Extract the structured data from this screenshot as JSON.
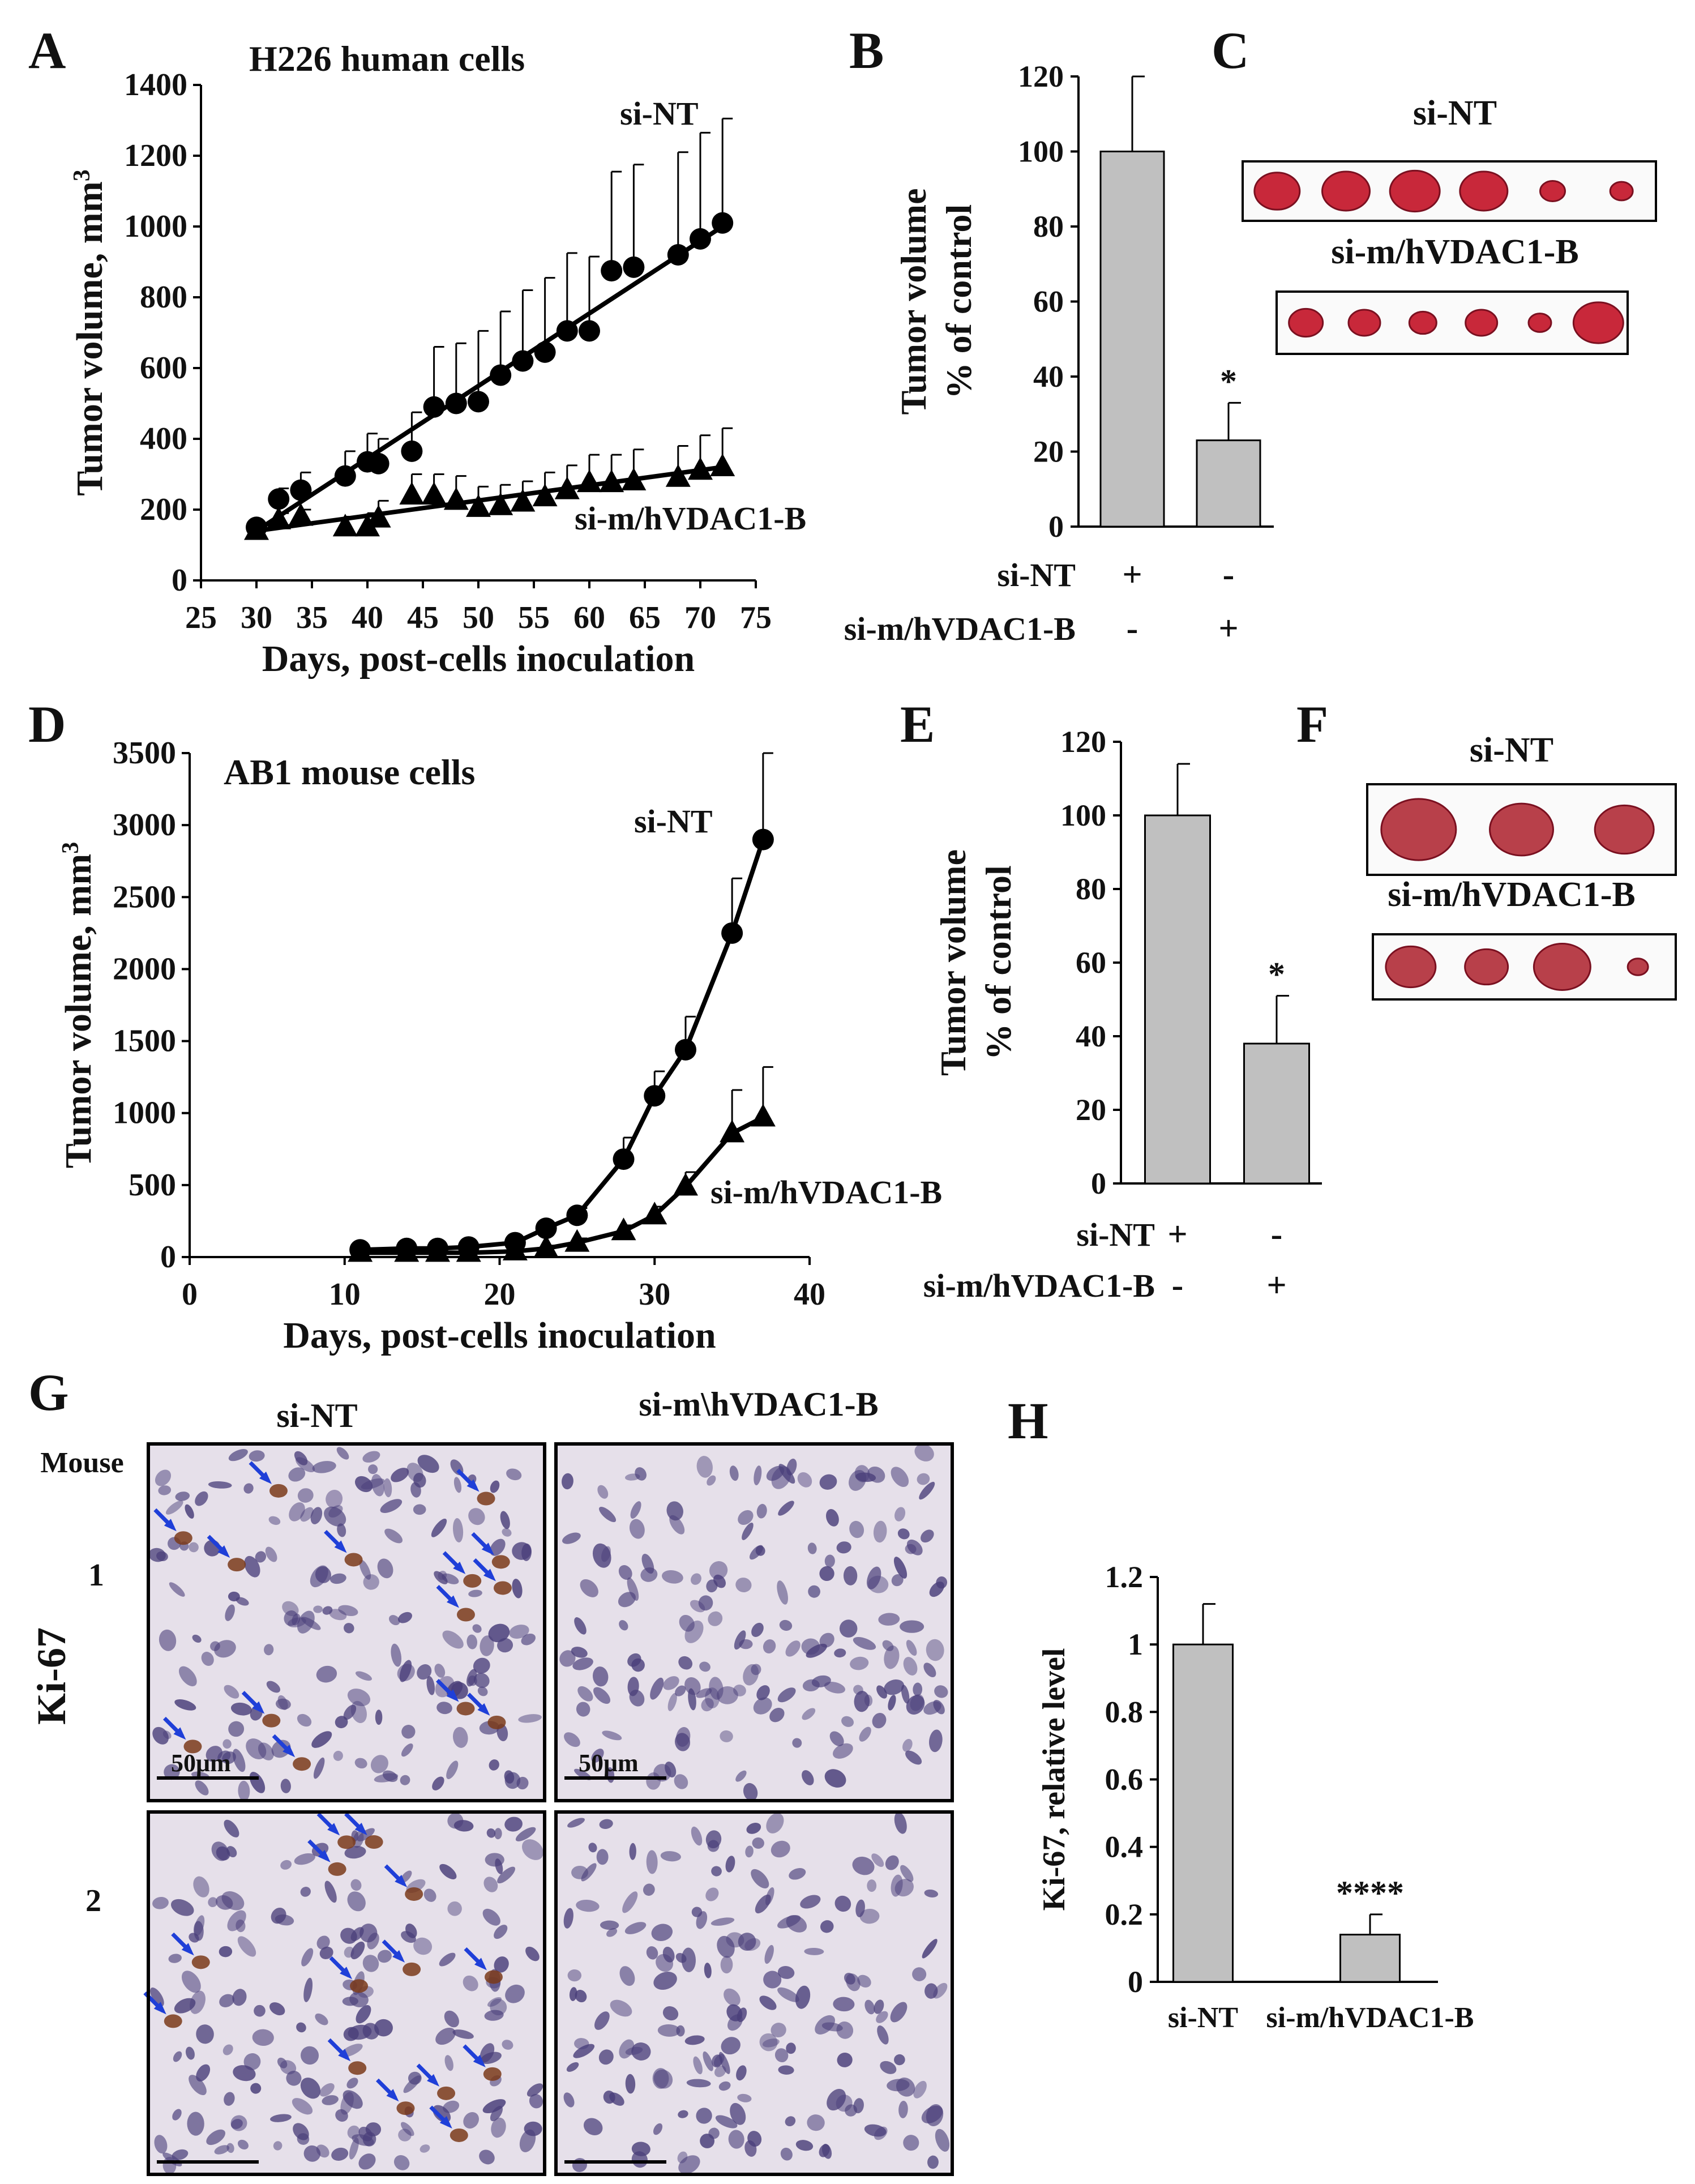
{
  "panels": [
    {
      "letter": "A"
    },
    {
      "letter": "B"
    },
    {
      "letter": "C"
    },
    {
      "letter": "D"
    },
    {
      "letter": "E"
    },
    {
      "letter": "F"
    },
    {
      "letter": "G"
    },
    {
      "letter": "H"
    }
  ],
  "colors": {
    "bar_fill": "#c0c0c0",
    "line": "#000000",
    "arrow": "#1f3fd8",
    "tissue_bg": "#e6e0ea",
    "nucleus": "#4a3f7a",
    "ki67_positive": "#7a3a1a",
    "tumor_red": "#c8283a"
  },
  "chart_data": [
    {
      "id": "A",
      "type": "line",
      "title": "H226 human cells",
      "xlabel": "Days, post-cells inoculation",
      "ylabel": "Tumor volume, mm3",
      "xlim": [
        25,
        75
      ],
      "ylim": [
        0,
        1400
      ],
      "xticks": [
        "25",
        "30",
        "35",
        "40",
        "45",
        "50",
        "55",
        "60",
        "65",
        "70",
        "75"
      ],
      "yticks": [
        "0",
        "200",
        "400",
        "600",
        "800",
        "1000",
        "1200",
        "1400"
      ],
      "series": [
        {
          "name": "si-NT",
          "marker": "circle",
          "x": [
            30,
            32,
            34,
            38,
            40,
            41,
            44,
            46,
            48,
            50,
            52,
            54,
            56,
            58,
            60,
            62,
            64,
            68,
            70,
            72
          ],
          "y": [
            150,
            230,
            255,
            295,
            335,
            330,
            365,
            490,
            500,
            505,
            580,
            620,
            645,
            705,
            705,
            875,
            885,
            920,
            965,
            1010
          ],
          "err": [
            10,
            30,
            50,
            70,
            80,
            70,
            110,
            170,
            170,
            200,
            180,
            200,
            210,
            220,
            210,
            280,
            290,
            290,
            300,
            295
          ],
          "fit": [
            [
              30,
              140
            ],
            [
              72,
              1000
            ]
          ]
        },
        {
          "name": "si-m/hVDAC1-B",
          "marker": "triangle",
          "x": [
            30,
            32,
            34,
            38,
            40,
            41,
            44,
            46,
            48,
            50,
            52,
            54,
            56,
            58,
            60,
            62,
            64,
            68,
            70,
            72
          ],
          "y": [
            140,
            170,
            180,
            150,
            150,
            175,
            240,
            240,
            225,
            205,
            210,
            220,
            235,
            255,
            275,
            275,
            280,
            290,
            310,
            320
          ],
          "err": [
            10,
            20,
            20,
            30,
            40,
            50,
            60,
            60,
            70,
            60,
            60,
            60,
            70,
            70,
            80,
            80,
            90,
            90,
            100,
            110
          ],
          "fit": [
            [
              30,
              140
            ],
            [
              72,
              320
            ]
          ]
        }
      ]
    },
    {
      "id": "B",
      "type": "bar",
      "ylabel_line1": "Tumor volume",
      "ylabel_line2": "% of control",
      "ylim": [
        0,
        120
      ],
      "yticks": [
        "0",
        "20",
        "40",
        "60",
        "80",
        "100",
        "120"
      ],
      "values": [
        100,
        23
      ],
      "err": [
        20,
        10
      ],
      "significance": [
        "",
        "*"
      ],
      "condition_rows": [
        {
          "label": "si-NT",
          "signs": [
            "+",
            "-"
          ]
        },
        {
          "label": "si-m/hVDAC1-B",
          "signs": [
            "-",
            "+"
          ]
        }
      ]
    },
    {
      "id": "D",
      "type": "line",
      "title": "AB1 mouse cells",
      "xlabel": "Days, post-cells inoculation",
      "ylabel": "Tumor volume, mm3",
      "xlim": [
        0,
        40
      ],
      "ylim": [
        0,
        3500
      ],
      "xticks": [
        "0",
        "10",
        "20",
        "30",
        "40"
      ],
      "yticks": [
        "0",
        "500",
        "1000",
        "1500",
        "2000",
        "2500",
        "3000",
        "3500"
      ],
      "series": [
        {
          "name": "si-NT",
          "marker": "circle",
          "x": [
            11,
            14,
            16,
            18,
            21,
            23,
            25,
            28,
            30,
            32,
            35,
            37
          ],
          "y": [
            50,
            60,
            60,
            70,
            100,
            200,
            290,
            680,
            1120,
            1440,
            2250,
            2900
          ],
          "err": [
            10,
            10,
            10,
            10,
            20,
            30,
            50,
            150,
            170,
            230,
            380,
            600
          ]
        },
        {
          "name": "si-m/hVDAC1-B",
          "marker": "triangle",
          "x": [
            11,
            14,
            16,
            18,
            21,
            23,
            25,
            28,
            30,
            32,
            35,
            37
          ],
          "y": [
            30,
            30,
            30,
            30,
            40,
            60,
            100,
            180,
            290,
            490,
            860,
            970
          ],
          "err": [
            10,
            10,
            10,
            10,
            10,
            20,
            30,
            40,
            60,
            100,
            300,
            350
          ]
        }
      ]
    },
    {
      "id": "E",
      "type": "bar",
      "ylabel_line1": "Tumor volume",
      "ylabel_line2": "% of control",
      "ylim": [
        0,
        120
      ],
      "yticks": [
        "0",
        "20",
        "40",
        "60",
        "80",
        "100",
        "120"
      ],
      "values": [
        100,
        38
      ],
      "err": [
        14,
        13
      ],
      "significance": [
        "",
        "*"
      ],
      "condition_rows": [
        {
          "label": "si-NT",
          "signs": [
            "+",
            "-"
          ]
        },
        {
          "label": "si-m/hVDAC1-B",
          "signs": [
            "-",
            "+"
          ]
        }
      ]
    },
    {
      "id": "H",
      "type": "bar",
      "ylabel": "Ki-67, relative level",
      "ylim": [
        0,
        1.2
      ],
      "yticks": [
        "0",
        "0.2",
        "0.4",
        "0.6",
        "0.8",
        "1",
        "1.2"
      ],
      "categories": [
        "si-NT",
        "si-m/hVDAC1-B"
      ],
      "values": [
        1.0,
        0.14
      ],
      "err": [
        0.12,
        0.06
      ],
      "significance": [
        "",
        "****"
      ]
    }
  ],
  "photos": {
    "C": {
      "top_label": "si-NT",
      "bottom_label": "si-m/hVDAC1-B",
      "top_count": 6,
      "bottom_count": 6
    },
    "F": {
      "top_label": "si-NT",
      "bottom_label": "si-m/hVDAC1-B",
      "top_count": 3,
      "bottom_count": 4
    }
  },
  "histology": {
    "col_labels": [
      "si-NT",
      "si-m\\hVDAC1-B"
    ],
    "mouse_header": "Mouse",
    "row_labels": [
      "1",
      "2"
    ],
    "stain_label": "Ki-67",
    "scale_bar": "50μm"
  }
}
